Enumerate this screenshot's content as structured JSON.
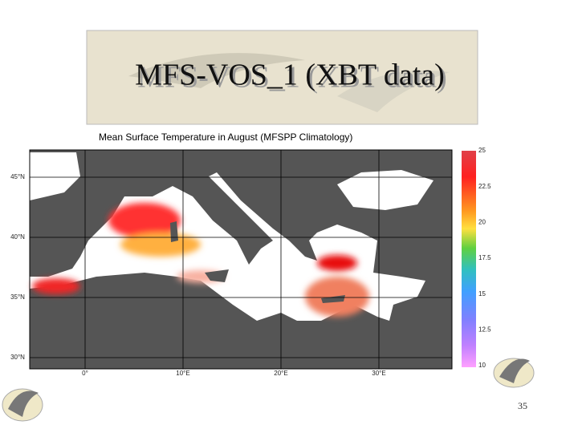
{
  "title": "MFS-VOS_1 (XBT data)",
  "map": {
    "title": "Mean Surface Temperature in August (MFSPP Climatology)",
    "lat_labels": [
      "45°N",
      "40°N",
      "35°N",
      "30°N"
    ],
    "lon_labels": [
      "0°",
      "10°E",
      "20°E",
      "30°E"
    ]
  },
  "colorbar": {
    "ticks": [
      "25",
      "22.5",
      "20",
      "17.5",
      "15",
      "12.5",
      "10"
    ]
  },
  "page_number": "35"
}
